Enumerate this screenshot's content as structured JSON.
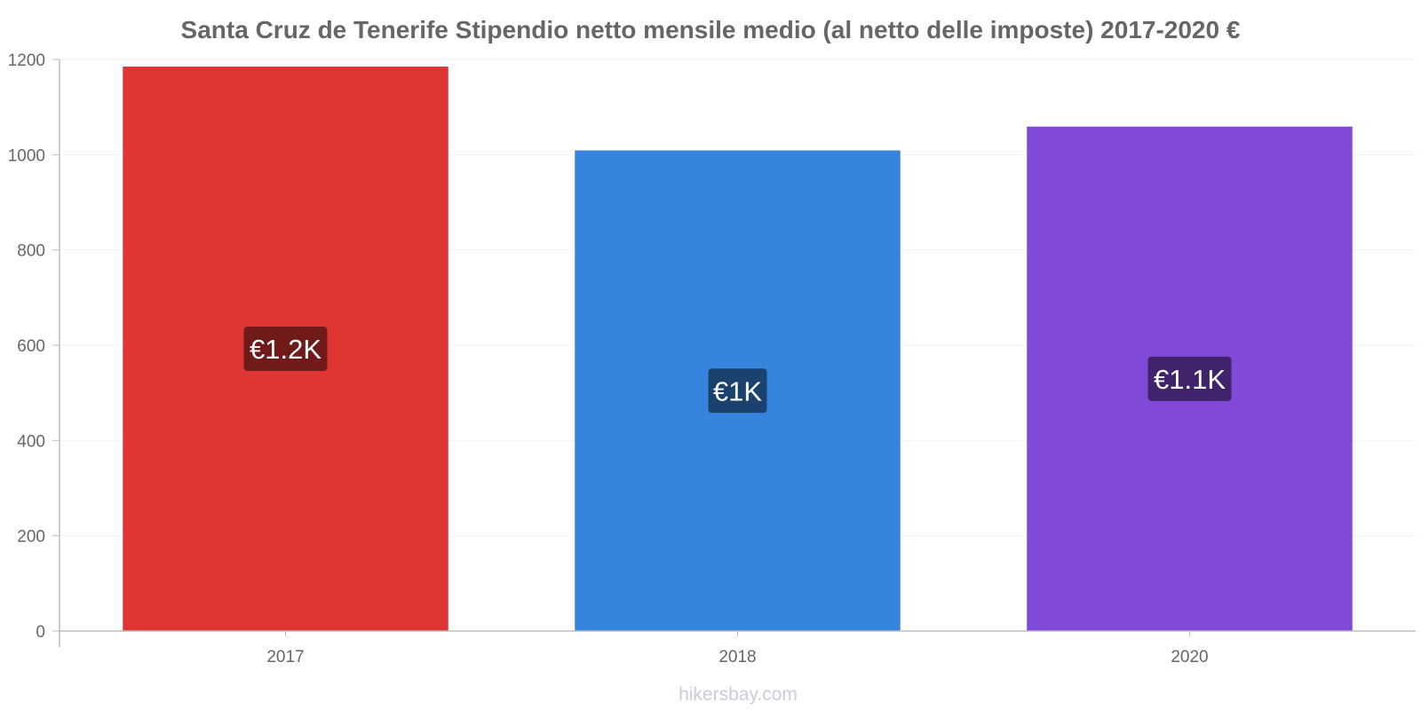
{
  "chart_data": {
    "type": "bar",
    "title": "Santa Cruz de Tenerife Stipendio netto mensile medio (al netto delle imposte) 2017-2020 €",
    "categories": [
      "2017",
      "2018",
      "2020"
    ],
    "values": [
      1185,
      1009,
      1059
    ],
    "value_labels": [
      "€1.2K",
      "€1K",
      "€1.1K"
    ],
    "bar_colors": [
      "#e03535",
      "#3784df",
      "#8049d7"
    ],
    "label_bg_colors": [
      "#701a1a",
      "#1b426f",
      "#40246b"
    ],
    "xlabel": "",
    "ylabel": "",
    "ylim": [
      0,
      1200
    ],
    "yticks": [
      0,
      200,
      400,
      600,
      800,
      1000,
      1200
    ],
    "grid": true,
    "legend": "none"
  },
  "watermark": "hikersbay.com"
}
